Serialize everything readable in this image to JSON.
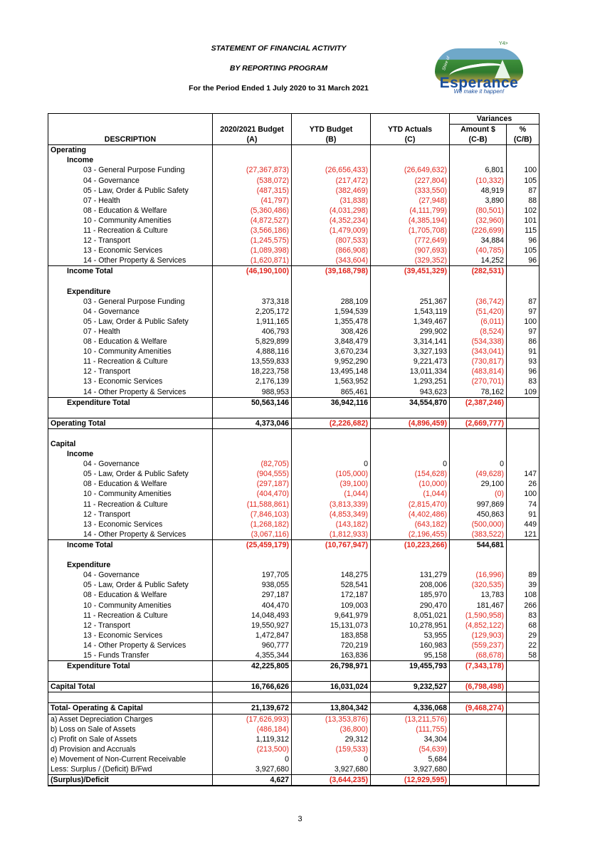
{
  "header": {
    "title": "STATEMENT OF FINANCIAL ACTIVITY",
    "subtitle": "BY REPORTING PROGRAM",
    "period": "For the Period Ended 1 July 2020 to 31 March 2021"
  },
  "logo": {
    "name": "Esperance",
    "shire": "Shire of",
    "tagline": "We make it happen!",
    "mark": "Y4>"
  },
  "table": {
    "variances_label": "Variances",
    "columns": {
      "description": "DESCRIPTION",
      "budget": "2020/2021 Budget",
      "budget_ref": "(A)",
      "ytd_budget": "YTD Budget",
      "ytd_budget_ref": "(B)",
      "ytd_actuals": "YTD Actuals",
      "ytd_actuals_ref": "(C)",
      "amount": "Amount $",
      "amount_ref": "(C-B)",
      "pct": "%",
      "pct_ref": "(C/B)"
    },
    "rows": [
      {
        "label": "Operating",
        "indent": 0,
        "bold": true,
        "vals": [
          "",
          "",
          "",
          "",
          ""
        ]
      },
      {
        "label": "Income",
        "indent": 1,
        "bold": true,
        "vals": [
          "",
          "",
          "",
          "",
          ""
        ]
      },
      {
        "label": "03 - General Purpose Funding",
        "indent": 2,
        "vals": [
          "(27,367,873)",
          "(26,656,433)",
          "(26,649,632)",
          "6,801",
          "100"
        ]
      },
      {
        "label": "04 - Governance",
        "indent": 2,
        "vals": [
          "(538,072)",
          "(217,472)",
          "(227,804)",
          "(10,332)",
          "105"
        ]
      },
      {
        "label": "05 - Law, Order & Public Safety",
        "indent": 2,
        "vals": [
          "(487,315)",
          "(382,469)",
          "(333,550)",
          "48,919",
          "87"
        ]
      },
      {
        "label": "07 - Health",
        "indent": 2,
        "vals": [
          "(41,797)",
          "(31,838)",
          "(27,948)",
          "3,890",
          "88"
        ]
      },
      {
        "label": "08 - Education & Welfare",
        "indent": 2,
        "vals": [
          "(5,360,486)",
          "(4,031,298)",
          "(4,111,799)",
          "(80,501)",
          "102"
        ]
      },
      {
        "label": "10 - Community Amenities",
        "indent": 2,
        "vals": [
          "(4,872,527)",
          "(4,352,234)",
          "(4,385,194)",
          "(32,960)",
          "101"
        ]
      },
      {
        "label": "11 - Recreation & Culture",
        "indent": 2,
        "vals": [
          "(3,566,186)",
          "(1,479,009)",
          "(1,705,708)",
          "(226,699)",
          "115"
        ]
      },
      {
        "label": "12 - Transport",
        "indent": 2,
        "vals": [
          "(1,245,575)",
          "(807,533)",
          "(772,649)",
          "34,884",
          "96"
        ]
      },
      {
        "label": "13 - Economic Services",
        "indent": 2,
        "vals": [
          "(1,089,398)",
          "(866,908)",
          "(907,693)",
          "(40,785)",
          "105"
        ]
      },
      {
        "label": "14 - Other Property & Services",
        "indent": 2,
        "vals": [
          "(1,620,871)",
          "(343,604)",
          "(329,352)",
          "14,252",
          "96"
        ]
      },
      {
        "label": "Income Total",
        "indent": 1,
        "bold": true,
        "cls": "ol",
        "vals": [
          "(46,190,100)",
          "(39,168,798)",
          "(39,451,329)",
          "(282,531)",
          ""
        ]
      },
      {
        "label": "",
        "indent": 0,
        "vals": [
          "",
          "",
          "",
          "",
          ""
        ]
      },
      {
        "label": "Expenditure",
        "indent": 1,
        "bold": true,
        "vals": [
          "",
          "",
          "",
          "",
          ""
        ]
      },
      {
        "label": "03 - General Purpose Funding",
        "indent": 2,
        "vals": [
          "373,318",
          "288,109",
          "251,367",
          "(36,742)",
          "87"
        ]
      },
      {
        "label": "04 - Governance",
        "indent": 2,
        "vals": [
          "2,205,172",
          "1,594,539",
          "1,543,119",
          "(51,420)",
          "97"
        ]
      },
      {
        "label": "05 - Law, Order & Public Safety",
        "indent": 2,
        "vals": [
          "1,911,165",
          "1,355,478",
          "1,349,467",
          "(6,011)",
          "100"
        ]
      },
      {
        "label": "07 - Health",
        "indent": 2,
        "vals": [
          "406,793",
          "308,426",
          "299,902",
          "(8,524)",
          "97"
        ]
      },
      {
        "label": "08 - Education & Welfare",
        "indent": 2,
        "vals": [
          "5,829,899",
          "3,848,479",
          "3,314,141",
          "(534,338)",
          "86"
        ]
      },
      {
        "label": "10 - Community Amenities",
        "indent": 2,
        "vals": [
          "4,888,116",
          "3,670,234",
          "3,327,193",
          "(343,041)",
          "91"
        ]
      },
      {
        "label": "11 - Recreation & Culture",
        "indent": 2,
        "vals": [
          "13,559,833",
          "9,952,290",
          "9,221,473",
          "(730,817)",
          "93"
        ]
      },
      {
        "label": "12 - Transport",
        "indent": 2,
        "vals": [
          "18,223,758",
          "13,495,148",
          "13,011,334",
          "(483,814)",
          "96"
        ]
      },
      {
        "label": "13 - Economic Services",
        "indent": 2,
        "vals": [
          "2,176,139",
          "1,563,952",
          "1,293,251",
          "(270,701)",
          "83"
        ]
      },
      {
        "label": "14 - Other Property & Services",
        "indent": 2,
        "vals": [
          "988,953",
          "865,461",
          "943,623",
          "78,162",
          "109"
        ]
      },
      {
        "label": "Expenditure Total",
        "indent": 1,
        "bold": true,
        "cls": "ol",
        "vals": [
          "50,563,146",
          "36,942,116",
          "34,554,870",
          "(2,387,246)",
          ""
        ]
      },
      {
        "label": "",
        "indent": 0,
        "vals": [
          "",
          "",
          "",
          "",
          ""
        ]
      },
      {
        "label": "Operating Total",
        "indent": 0,
        "bold": true,
        "cls": "top bot",
        "vals": [
          "4,373,046",
          "(2,226,682)",
          "(4,896,459)",
          "(2,669,777)",
          ""
        ]
      },
      {
        "label": "",
        "indent": 0,
        "vals": [
          "",
          "",
          "",
          "",
          ""
        ]
      },
      {
        "label": "Capital",
        "indent": 0,
        "bold": true,
        "vals": [
          "",
          "",
          "",
          "",
          ""
        ]
      },
      {
        "label": "Income",
        "indent": 1,
        "bold": true,
        "vals": [
          "",
          "",
          "",
          "",
          ""
        ]
      },
      {
        "label": "04 - Governance",
        "indent": 2,
        "vals": [
          "(82,705)",
          "0",
          "0",
          "0",
          ""
        ]
      },
      {
        "label": "05 - Law, Order & Public Safety",
        "indent": 2,
        "vals": [
          "(904,555)",
          "(105,000)",
          "(154,628)",
          "(49,628)",
          "147"
        ]
      },
      {
        "label": "08 - Education & Welfare",
        "indent": 2,
        "vals": [
          "(297,187)",
          "(39,100)",
          "(10,000)",
          "29,100",
          "26"
        ]
      },
      {
        "label": "10 - Community Amenities",
        "indent": 2,
        "vals": [
          "(404,470)",
          "(1,044)",
          "(1,044)",
          "(0)",
          "100"
        ]
      },
      {
        "label": "11 - Recreation & Culture",
        "indent": 2,
        "vals": [
          "(11,588,861)",
          "(3,813,339)",
          "(2,815,470)",
          "997,869",
          "74"
        ]
      },
      {
        "label": "12 - Transport",
        "indent": 2,
        "vals": [
          "(7,846,103)",
          "(4,853,349)",
          "(4,402,486)",
          "450,863",
          "91"
        ]
      },
      {
        "label": "13 - Economic Services",
        "indent": 2,
        "vals": [
          "(1,268,182)",
          "(143,182)",
          "(643,182)",
          "(500,000)",
          "449"
        ]
      },
      {
        "label": "14 - Other Property & Services",
        "indent": 2,
        "vals": [
          "(3,067,116)",
          "(1,812,933)",
          "(2,196,455)",
          "(383,522)",
          "121"
        ]
      },
      {
        "label": "Income Total",
        "indent": 1,
        "bold": true,
        "cls": "ol",
        "vals": [
          "(25,459,179)",
          "(10,767,947)",
          "(10,223,266)",
          "544,681",
          ""
        ]
      },
      {
        "label": "",
        "indent": 0,
        "vals": [
          "",
          "",
          "",
          "",
          ""
        ]
      },
      {
        "label": "Expenditure",
        "indent": 1,
        "bold": true,
        "vals": [
          "",
          "",
          "",
          "",
          ""
        ]
      },
      {
        "label": "04 - Governance",
        "indent": 2,
        "vals": [
          "197,705",
          "148,275",
          "131,279",
          "(16,996)",
          "89"
        ]
      },
      {
        "label": "05 - Law, Order & Public Safety",
        "indent": 2,
        "vals": [
          "938,055",
          "528,541",
          "208,006",
          "(320,535)",
          "39"
        ]
      },
      {
        "label": "08 - Education & Welfare",
        "indent": 2,
        "vals": [
          "297,187",
          "172,187",
          "185,970",
          "13,783",
          "108"
        ]
      },
      {
        "label": "10 - Community Amenities",
        "indent": 2,
        "vals": [
          "404,470",
          "109,003",
          "290,470",
          "181,467",
          "266"
        ]
      },
      {
        "label": "11 - Recreation & Culture",
        "indent": 2,
        "vals": [
          "14,048,493",
          "9,641,979",
          "8,051,021",
          "(1,590,958)",
          "83"
        ]
      },
      {
        "label": "12 - Transport",
        "indent": 2,
        "vals": [
          "19,550,927",
          "15,131,073",
          "10,278,951",
          "(4,852,122)",
          "68"
        ]
      },
      {
        "label": "13 - Economic Services",
        "indent": 2,
        "vals": [
          "1,472,847",
          "183,858",
          "53,955",
          "(129,903)",
          "29"
        ]
      },
      {
        "label": "14 - Other Property & Services",
        "indent": 2,
        "vals": [
          "960,777",
          "720,219",
          "160,983",
          "(559,237)",
          "22"
        ]
      },
      {
        "label": "15 - Funds Transfer",
        "indent": 2,
        "vals": [
          "4,355,344",
          "163,836",
          "95,158",
          "(68,678)",
          "58"
        ]
      },
      {
        "label": "Expenditure Total",
        "indent": 1,
        "bold": true,
        "cls": "ol",
        "vals": [
          "42,225,805",
          "26,798,971",
          "19,455,793",
          "(7,343,178)",
          ""
        ]
      },
      {
        "label": "",
        "indent": 0,
        "vals": [
          "",
          "",
          "",
          "",
          ""
        ]
      },
      {
        "label": "Capital Total",
        "indent": 0,
        "bold": true,
        "cls": "top bot",
        "vals": [
          "16,766,626",
          "16,031,024",
          "9,232,527",
          "(6,798,498)",
          ""
        ]
      },
      {
        "label": "",
        "indent": 0,
        "vals": [
          "",
          "",
          "",
          "",
          ""
        ]
      },
      {
        "label": "Total- Operating & Capital",
        "indent": 0,
        "bold": true,
        "cls": "top bot",
        "vals": [
          "21,139,672",
          "13,804,342",
          "4,336,068",
          "(9,468,274)",
          ""
        ]
      },
      {
        "label": "a) Asset Depreciation Charges",
        "indent": 0,
        "vals": [
          "(17,626,993)",
          "(13,353,876)",
          "(13,211,576)",
          "",
          ""
        ]
      },
      {
        "label": "b) Loss on Sale of Assets",
        "indent": 0,
        "vals": [
          "(486,184)",
          "(36,800)",
          "(111,755)",
          "",
          ""
        ]
      },
      {
        "label": "c) Profit on Sale of Assets",
        "indent": 0,
        "vals": [
          "1,119,312",
          "29,312",
          "34,304",
          "",
          ""
        ]
      },
      {
        "label": "d) Provision and Accruals",
        "indent": 0,
        "vals": [
          "(213,500)",
          "(159,533)",
          "(54,639)",
          "",
          ""
        ]
      },
      {
        "label": "e) Movement of Non-Current Receivable",
        "indent": 0,
        "vals": [
          "0",
          "0",
          "5,684",
          "",
          ""
        ]
      },
      {
        "label": "Less: Surplus / (Deficit) B/Fwd",
        "indent": 0,
        "vals": [
          "3,927,680",
          "3,927,680",
          "3,927,680",
          "",
          ""
        ]
      },
      {
        "label": "(Surplus)/Deficit",
        "indent": 0,
        "bold": true,
        "cls": "top dbl",
        "vals": [
          "4,627",
          "(3,644,235)",
          "(12,929,595)",
          "",
          ""
        ]
      }
    ]
  },
  "page_number": "3",
  "colors": {
    "negative": "#e0241c",
    "text": "#000000",
    "logo_blue": "#1b4f9c"
  }
}
